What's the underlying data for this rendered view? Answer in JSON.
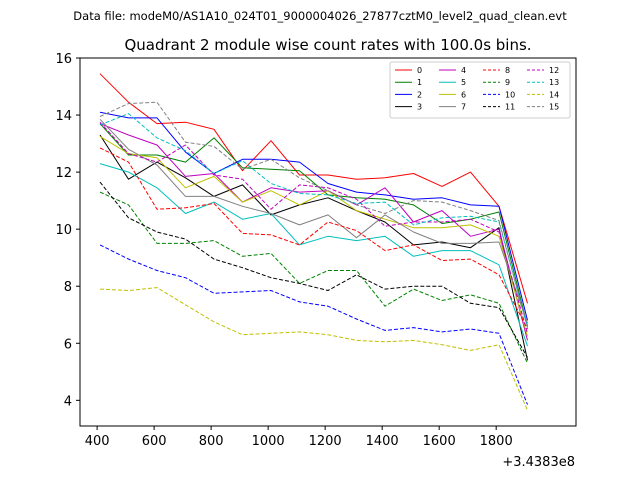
{
  "chart_data": {
    "type": "line",
    "suptitle": "Data file: modeM0/AS1A10_024T01_9000004026_27877cztM0_level2_quad_clean.evt",
    "title": "Quadrant 2 module wise count rates with 100.0s bins.",
    "x_offset_label": "+3.4383e8",
    "xlabel": "",
    "ylabel": "",
    "xlim": [
      340,
      2080
    ],
    "ylim": [
      3.1,
      16
    ],
    "xticks": [
      400,
      600,
      800,
      1000,
      1200,
      1400,
      1600,
      1800
    ],
    "yticks": [
      4,
      6,
      8,
      10,
      12,
      14,
      16
    ],
    "x": [
      410,
      510,
      610,
      710,
      810,
      910,
      1010,
      1110,
      1210,
      1310,
      1410,
      1510,
      1610,
      1710,
      1810,
      1910
    ],
    "legend_position": "upper-right",
    "series": [
      {
        "name": "0",
        "color": "#ff0000",
        "dash": "solid",
        "values": [
          15.45,
          14.45,
          13.7,
          13.75,
          13.5,
          12.05,
          13.1,
          11.9,
          11.9,
          11.75,
          11.8,
          11.95,
          11.5,
          12.0,
          10.8,
          7.4
        ]
      },
      {
        "name": "1",
        "color": "#008000",
        "dash": "solid",
        "values": [
          13.7,
          12.6,
          12.6,
          12.35,
          13.2,
          12.15,
          12.1,
          12.05,
          11.2,
          11.1,
          11.05,
          10.85,
          10.2,
          10.35,
          10.6,
          6.6
        ]
      },
      {
        "name": "2",
        "color": "#0000ff",
        "dash": "solid",
        "values": [
          14.1,
          13.9,
          13.9,
          12.7,
          11.95,
          12.45,
          12.45,
          12.35,
          11.6,
          11.3,
          11.2,
          11.05,
          11.1,
          10.85,
          10.8,
          6.8
        ]
      },
      {
        "name": "3",
        "color": "#000000",
        "dash": "solid",
        "values": [
          13.3,
          11.75,
          12.35,
          11.8,
          11.15,
          11.55,
          10.5,
          10.85,
          11.1,
          10.65,
          10.25,
          9.45,
          9.55,
          9.35,
          10.05,
          5.4
        ]
      },
      {
        "name": "4",
        "color": "#bf00bf",
        "dash": "solid",
        "values": [
          13.7,
          13.3,
          12.95,
          11.85,
          11.95,
          10.95,
          11.45,
          11.3,
          11.35,
          10.85,
          11.45,
          10.25,
          10.65,
          9.75,
          10.0,
          6.1
        ]
      },
      {
        "name": "5",
        "color": "#00bfbf",
        "dash": "solid",
        "values": [
          12.3,
          12.0,
          11.45,
          10.55,
          10.95,
          10.35,
          10.55,
          9.45,
          9.75,
          9.6,
          9.75,
          9.05,
          9.25,
          9.25,
          8.75,
          5.9
        ]
      },
      {
        "name": "6",
        "color": "#bfbf00",
        "dash": "solid",
        "values": [
          13.25,
          12.65,
          12.5,
          11.45,
          11.85,
          10.95,
          11.35,
          10.85,
          11.35,
          10.65,
          10.35,
          10.05,
          10.05,
          10.15,
          9.75,
          6.25
        ]
      },
      {
        "name": "7",
        "color": "#808080",
        "dash": "solid",
        "values": [
          13.85,
          12.8,
          12.25,
          11.15,
          11.15,
          10.8,
          10.55,
          10.15,
          10.5,
          9.7,
          10.5,
          9.9,
          9.5,
          9.5,
          9.55,
          6.7
        ]
      },
      {
        "name": "8",
        "color": "#ff0000",
        "dash": "dashed",
        "values": [
          12.85,
          12.35,
          10.7,
          10.75,
          10.9,
          9.85,
          9.8,
          9.45,
          10.25,
          9.95,
          9.25,
          9.45,
          8.9,
          8.95,
          8.4,
          6.5
        ]
      },
      {
        "name": "9",
        "color": "#008000",
        "dash": "dashed",
        "values": [
          11.3,
          10.85,
          9.5,
          9.5,
          9.6,
          9.05,
          9.15,
          8.1,
          8.55,
          8.55,
          7.3,
          7.9,
          7.5,
          7.7,
          7.4,
          5.3
        ]
      },
      {
        "name": "10",
        "color": "#0000ff",
        "dash": "dashed",
        "values": [
          9.45,
          8.95,
          8.55,
          8.3,
          7.75,
          7.8,
          7.85,
          7.45,
          7.3,
          6.85,
          6.45,
          6.55,
          6.4,
          6.5,
          6.35,
          3.85
        ]
      },
      {
        "name": "11",
        "color": "#000000",
        "dash": "dashed",
        "values": [
          11.65,
          10.4,
          9.9,
          9.65,
          8.95,
          8.65,
          8.3,
          8.1,
          7.85,
          8.4,
          7.9,
          8.0,
          8.0,
          7.4,
          7.25,
          5.5
        ]
      },
      {
        "name": "12",
        "color": "#bf00bf",
        "dash": "dashed",
        "values": [
          13.75,
          12.65,
          12.35,
          12.95,
          11.9,
          11.75,
          10.7,
          11.55,
          11.45,
          11.05,
          10.1,
          10.25,
          10.25,
          10.35,
          9.9,
          6.35
        ]
      },
      {
        "name": "13",
        "color": "#00bfbf",
        "dash": "dashed",
        "values": [
          13.65,
          14.05,
          13.2,
          12.75,
          11.95,
          12.4,
          11.6,
          11.25,
          11.2,
          10.9,
          10.95,
          10.15,
          10.4,
          10.45,
          10.25,
          6.55
        ]
      },
      {
        "name": "14",
        "color": "#bfbf00",
        "dash": "dashed",
        "values": [
          7.9,
          7.85,
          7.95,
          7.35,
          6.75,
          6.3,
          6.35,
          6.4,
          6.3,
          6.1,
          6.05,
          6.1,
          5.95,
          5.75,
          5.95,
          3.65
        ]
      },
      {
        "name": "15",
        "color": "#808080",
        "dash": "dashed",
        "values": [
          13.95,
          14.4,
          14.45,
          13.05,
          12.9,
          12.1,
          12.45,
          11.8,
          11.35,
          10.85,
          10.55,
          11.0,
          10.95,
          10.65,
          10.3,
          6.55
        ]
      }
    ]
  }
}
